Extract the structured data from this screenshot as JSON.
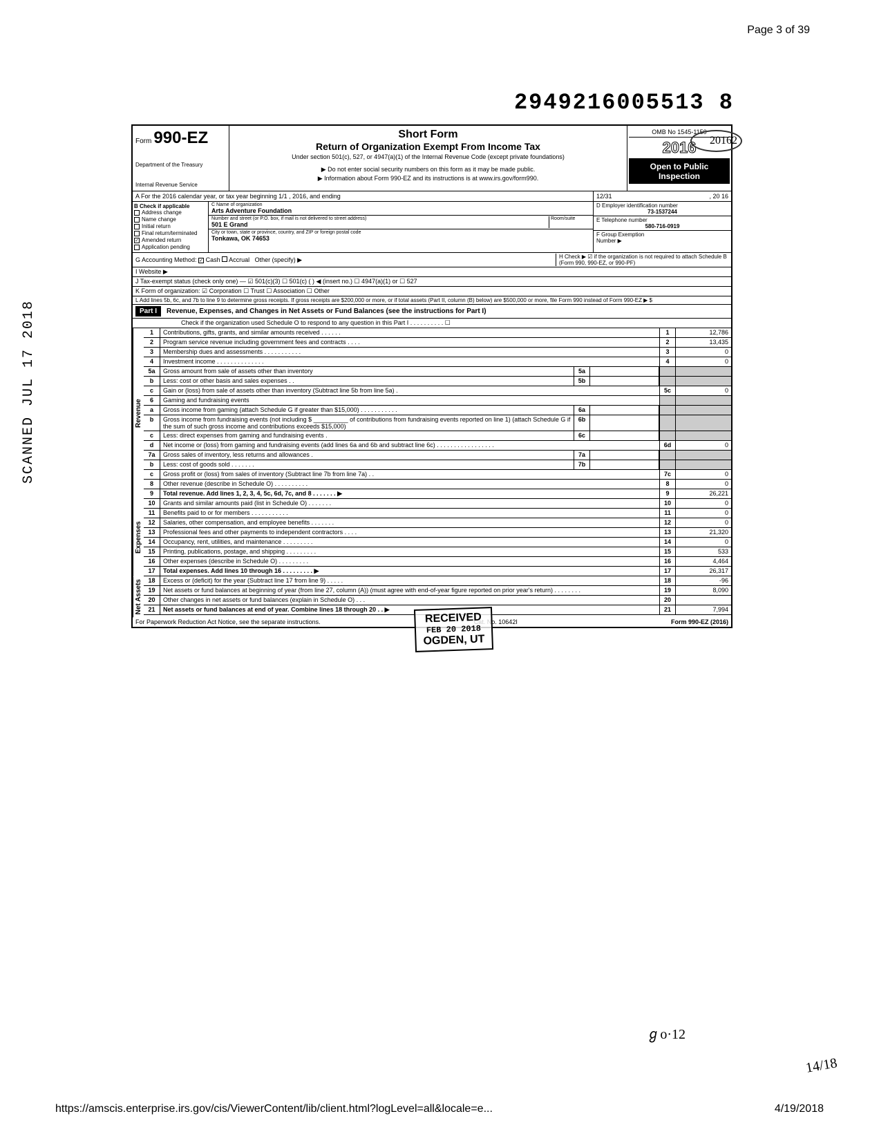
{
  "page_header": "Page 3 of 39",
  "doc_number": "2949216005513  8",
  "form": {
    "prefix": "Form",
    "number": "990-EZ",
    "dept1": "Department of the Treasury",
    "dept2": "Internal Revenue Service",
    "short_form": "Short Form",
    "title": "Return of Organization Exempt From Income Tax",
    "subtitle": "Under section 501(c), 527, or 4947(a)(1) of the Internal Revenue Code (except private foundations)",
    "arrow1": "▶ Do not enter social security numbers on this form as it may be made public.",
    "arrow2": "▶ Information about Form 990-EZ and its instructions is at www.irs.gov/form990.",
    "omb": "OMB No 1545-1150",
    "year": "2016",
    "hw_year": "20162",
    "open_public1": "Open to Public",
    "open_public2": "Inspection"
  },
  "row_a": {
    "left": "A  For the 2016 calendar year, or tax year beginning                    1/1                    , 2016, and ending",
    "right_date": "12/31",
    "right_year": ", 20    16"
  },
  "section_b": {
    "header": "B  Check if applicable",
    "items": [
      "Address change",
      "Name change",
      "Initial return",
      "Final return/terminated",
      "Amended return",
      "Application pending"
    ],
    "checked_idx": 4
  },
  "org": {
    "name_label": "C  Name of organization",
    "name": "Arts Adventure Foundation",
    "addr_label": "Number and street (or P.O. box, if mail is not delivered to street address)",
    "room_label": "Room/suite",
    "addr": "501 E Grand",
    "city_label": "City or town, state or province, country, and ZIP or foreign postal code",
    "city": "Tonkawa, OK 74653"
  },
  "right_info": {
    "d_label": "D Employer identification number",
    "d_value": "73-1537244",
    "e_label": "E  Telephone number",
    "e_value": "580-716-0919",
    "f_label": "F  Group Exemption",
    "f_label2": "Number  ▶"
  },
  "line_g": "G  Accounting Method:",
  "line_g_cash": "Cash",
  "line_g_accrual": "Accrual",
  "line_g_other": "Other (specify) ▶",
  "line_h": "H  Check ▶ ☑ if the organization is not required to attach Schedule B (Form 990, 990-EZ, or 990-PF)",
  "line_i": "I   Website ▶",
  "line_j": "J  Tax-exempt status (check only one) — ☑ 501(c)(3)  ☐ 501(c) (        ) ◀ (insert no.) ☐ 4947(a)(1) or  ☐ 527",
  "line_k": "K  Form of organization:  ☑ Corporation    ☐ Trust         ☐ Association      ☐ Other",
  "line_l": "L  Add lines 5b, 6c, and 7b to line 9 to determine gross receipts. If gross receipts are $200,000 or more, or if total assets (Part II, column (B) below) are $500,000 or more, file Form 990 instead of Form 990-EZ           ▶  $",
  "part1": {
    "label": "Part I",
    "title": "Revenue, Expenses, and Changes in Net Assets or Fund Balances (see the instructions for Part I)",
    "check": "Check if the organization used Schedule O to respond to any question in this Part I   .   .   .   .   .   .   .   .   .   .   ☐"
  },
  "revenue_label": "Revenue",
  "expenses_label": "Expenses",
  "netassets_label": "Net Assets",
  "rows": [
    {
      "n": "1",
      "d": "Contributions, gifts, grants, and similar amounts received   .   .   .   .   .   .",
      "en": "1",
      "ev": "12,786"
    },
    {
      "n": "2",
      "d": "Program service revenue including government fees and contracts   .   .   .   .",
      "en": "2",
      "ev": "13,435"
    },
    {
      "n": "3",
      "d": "Membership dues and assessments   .   .   .   .   .   .   .   .   .   .   .",
      "en": "3",
      "ev": "0"
    },
    {
      "n": "4",
      "d": "Investment income   .   .   .   .   .   .   .   .   .   .   .   .   .   .",
      "en": "4",
      "ev": "0"
    },
    {
      "n": "5a",
      "d": "Gross amount from sale of assets other than inventory",
      "mn": "5a",
      "mv": ""
    },
    {
      "n": "b",
      "d": "Less: cost or other basis and sales expenses   .   .",
      "mn": "5b",
      "mv": ""
    },
    {
      "n": "c",
      "d": "Gain or (loss) from sale of assets other than inventory (Subtract line 5b from line 5a)   .",
      "en": "5c",
      "ev": "0"
    },
    {
      "n": "6",
      "d": "Gaming and fundraising events"
    },
    {
      "n": "a",
      "d": "Gross income from gaming (attach Schedule G if greater than $15,000)   .   .   .   .   .   .   .   .   .   .   .",
      "mn": "6a",
      "mv": ""
    },
    {
      "n": "b",
      "d": "Gross income from fundraising events (not including  $ __________ of contributions from fundraising events reported on line 1) (attach Schedule G if the sum of such gross income and contributions exceeds $15,000)",
      "mn": "6b",
      "mv": ""
    },
    {
      "n": "c",
      "d": "Less: direct expenses from gaming and fundraising events   .",
      "mn": "6c",
      "mv": ""
    },
    {
      "n": "d",
      "d": "Net income or (loss) from gaming and fundraising events (add lines 6a and 6b and subtract line 6c)   .   .   .   .   .   .   .   .   .   .   .   .   .   .   .   .   .",
      "en": "6d",
      "ev": "0"
    },
    {
      "n": "7a",
      "d": "Gross sales of inventory, less returns and allowances   .",
      "mn": "7a",
      "mv": ""
    },
    {
      "n": "b",
      "d": "Less: cost of goods sold   .   .   .   .   .   .   .",
      "mn": "7b",
      "mv": ""
    },
    {
      "n": "c",
      "d": "Gross profit or (loss) from sales of inventory (Subtract line 7b from line 7a)   .   .",
      "en": "7c",
      "ev": "0"
    },
    {
      "n": "8",
      "d": "Other revenue (describe in Schedule O) .   .   .   .   .   .   .   .   .   .",
      "en": "8",
      "ev": "0"
    },
    {
      "n": "9",
      "d": "Total revenue. Add lines 1, 2, 3, 4, 5c, 6d, 7c, and 8   .   .   .   .   .   .   .   ▶",
      "en": "9",
      "ev": "26,221",
      "bold": true
    }
  ],
  "exp_rows": [
    {
      "n": "10",
      "d": "Grants and similar amounts paid (list in Schedule O)   .   .   .   .   .   .   .",
      "en": "10",
      "ev": "0"
    },
    {
      "n": "11",
      "d": "Benefits paid to or for members   .   .   .   .   .   .   .   .   .   .   .",
      "en": "11",
      "ev": "0"
    },
    {
      "n": "12",
      "d": "Salaries, other compensation, and employee benefits   .   .   .   .   .   .   .",
      "en": "12",
      "ev": "0"
    },
    {
      "n": "13",
      "d": "Professional fees and other payments to independent contractors   .   .   .   .",
      "en": "13",
      "ev": "21,320"
    },
    {
      "n": "14",
      "d": "Occupancy, rent, utilities, and maintenance   .   .   .   .   .   .   .   .   .",
      "en": "14",
      "ev": "0"
    },
    {
      "n": "15",
      "d": "Printing, publications, postage, and shipping .   .   .   .   .   .   .   .   .",
      "en": "15",
      "ev": "533"
    },
    {
      "n": "16",
      "d": "Other expenses (describe in Schedule O)   .   .   .   .   .   .   .   .   .",
      "en": "16",
      "ev": "4,464"
    },
    {
      "n": "17",
      "d": "Total expenses. Add lines 10 through 16   .   .   .   .   .   .   .   .   .   ▶",
      "en": "17",
      "ev": "26,317",
      "bold": true
    }
  ],
  "net_rows": [
    {
      "n": "18",
      "d": "Excess or (deficit) for the year (Subtract line 17 from line 9)   .   .   .   .   .",
      "en": "18",
      "ev": "-96"
    },
    {
      "n": "19",
      "d": "Net assets or fund balances at beginning of year (from line 27, column (A)) (must agree with end-of-year figure reported on prior year's return)   .   .   .   .   .   .   .   .",
      "en": "19",
      "ev": "8,090"
    },
    {
      "n": "20",
      "d": "Other changes in net assets or fund balances (explain in Schedule O)   .   .   .",
      "en": "20",
      "ev": ""
    },
    {
      "n": "21",
      "d": "Net assets or fund balances at end of year. Combine lines 18 through 20   .   .   ▶",
      "en": "21",
      "ev": "7,994",
      "bold": true
    }
  ],
  "footer": {
    "left": "For Paperwork Reduction Act Notice, see the separate instructions.",
    "mid": "Cat. No. 10642I",
    "right": "Form 990-EZ (2016)"
  },
  "scanned": "SCANNED JUL 17 2018",
  "received": {
    "title": "RECEIVED",
    "date": "FEB 20 2018",
    "loc": "OGDEN, UT"
  },
  "hw1": "ℊo·12",
  "hw2": "14/18",
  "url": "https://amscis.enterprise.irs.gov/cis/ViewerContent/lib/client.html?logLevel=all&locale=e...",
  "url_date": "4/19/2018"
}
